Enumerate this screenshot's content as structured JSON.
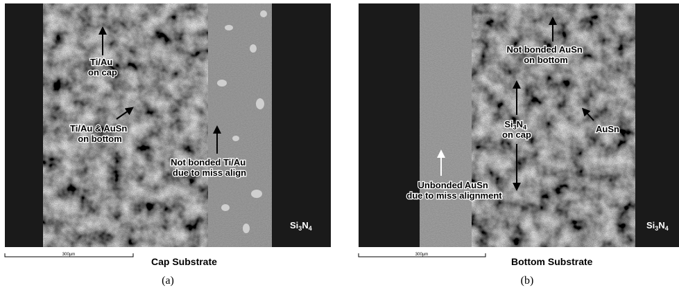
{
  "panels": [
    {
      "labels": [
        {
          "lines": [
            "Ti/Au",
            "on cap"
          ]
        },
        {
          "lines": [
            "Ti/Au & AuSn",
            "on bottom"
          ]
        },
        {
          "lines": [
            "Not bonded Ti/Au",
            "due to miss align"
          ]
        }
      ],
      "material": [
        "Si",
        "3",
        "N",
        "4"
      ],
      "scale_bar": "300µm",
      "caption": "Cap Substrate",
      "tag": "(a)"
    },
    {
      "labels": [
        {
          "lines": [
            "Not bonded AuSn",
            "on bottom"
          ]
        },
        {
          "lines": [
            [
              "Si",
              "3",
              "N",
              "4"
            ],
            "on cap"
          ]
        },
        {
          "lines": [
            "AuSn"
          ]
        },
        {
          "lines": [
            "Unbonded AuSn",
            "due to miss alignment"
          ]
        }
      ],
      "material": [
        "Si",
        "3",
        "N",
        "4"
      ],
      "scale_bar": "300µm",
      "caption": "Bottom Substrate",
      "tag": "(b)"
    }
  ]
}
